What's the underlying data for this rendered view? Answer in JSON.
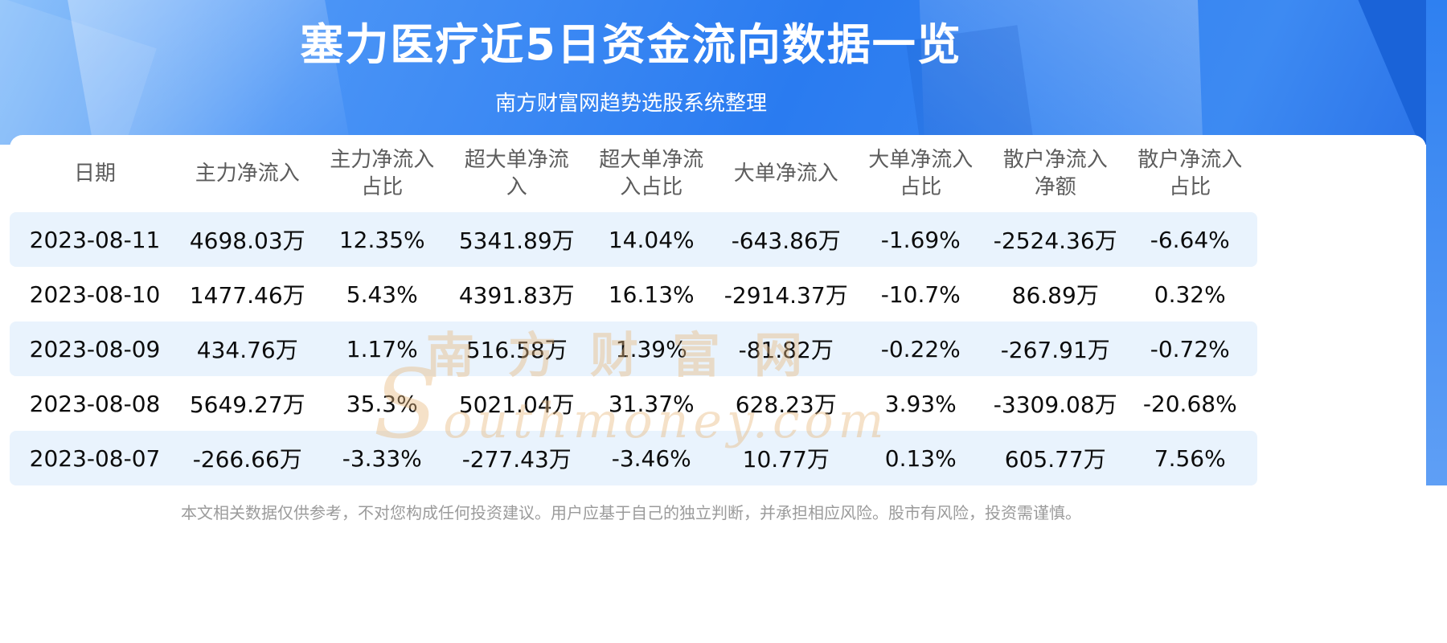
{
  "banner": {
    "title": "塞力医疗近5日资金流向数据一览",
    "subtitle": "南方财富网趋势选股系统整理"
  },
  "chart_data": {
    "type": "table",
    "title": "塞力医疗近5日资金流向数据一览",
    "source_note": "南方财富网趋势选股系统整理",
    "columns": [
      "日期",
      "主力净流入",
      "主力净流入占比",
      "超大单净流入",
      "超大单净流入占比",
      "大单净流入",
      "大单净流入占比",
      "散户净流入净额",
      "散户净流入占比"
    ],
    "rows": [
      [
        "2023-08-11",
        "4698.03万",
        "12.35%",
        "5341.89万",
        "14.04%",
        "-643.86万",
        "-1.69%",
        "-2524.36万",
        "-6.64%"
      ],
      [
        "2023-08-10",
        "1477.46万",
        "5.43%",
        "4391.83万",
        "16.13%",
        "-2914.37万",
        "-10.7%",
        "86.89万",
        "0.32%"
      ],
      [
        "2023-08-09",
        "434.76万",
        "1.17%",
        "516.58万",
        "1.39%",
        "-81.82万",
        "-0.22%",
        "-267.91万",
        "-0.72%"
      ],
      [
        "2023-08-08",
        "5649.27万",
        "35.3%",
        "5021.04万",
        "31.37%",
        "628.23万",
        "3.93%",
        "-3309.08万",
        "-20.68%"
      ],
      [
        "2023-08-07",
        "-266.66万",
        "-3.33%",
        "-277.43万",
        "-3.46%",
        "10.77万",
        "0.13%",
        "605.77万",
        "7.56%"
      ]
    ]
  },
  "watermark": {
    "cn": "南方财富网",
    "en": "Southmoney.com"
  },
  "footer": {
    "disclaimer": "本文相关数据仅供参考，不对您构成任何投资建议。用户应基于自己的独立判断，并承担相应风险。股市有风险，投资需谨慎。"
  },
  "colors": {
    "banner_blue": "#2a7bf0",
    "banner_dark_blue": "#1a63d8",
    "row_stripe": "#e9f3fd",
    "title_text": "#ffffff",
    "header_text": "#5c5c5c",
    "body_text": "#0c0c0c",
    "watermark": "#e8b97e",
    "footer_text": "#9b9b9b"
  }
}
